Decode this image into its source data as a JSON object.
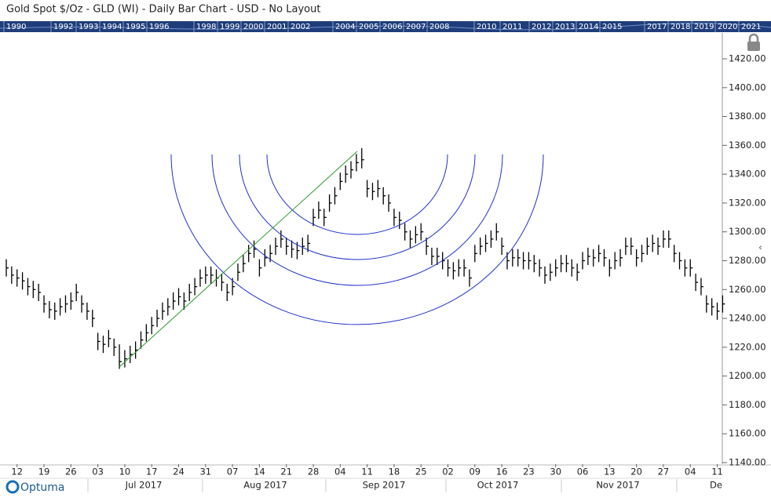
{
  "header": {
    "title": "Gold Spot $/Oz - GLD (WI) - Daily Bar Chart - USD - No Layout"
  },
  "timeline": [
    "1990",
    "1992",
    "1993",
    "1994",
    "1995",
    "1996",
    "1998",
    "1999",
    "2000",
    "2001",
    "2002",
    "2004",
    "2005",
    "2006",
    "2007",
    "2008",
    "2010",
    "2011",
    "2012",
    "2013",
    "2014",
    "2015",
    "2017",
    "2018",
    "2019",
    "2020",
    "2021"
  ],
  "brand": "Optuma",
  "chart_data": {
    "type": "ohlc",
    "high": [
      1281,
      1276,
      1274,
      1272,
      1268,
      1266,
      1264,
      1256,
      1252,
      1251,
      1254,
      1256,
      1258,
      1264,
      1256,
      1251,
      1246,
      1230,
      1228,
      1232,
      1226,
      1222,
      1218,
      1221,
      1224,
      1231,
      1236,
      1241,
      1246,
      1251,
      1254,
      1258,
      1261,
      1258,
      1264,
      1268,
      1274,
      1276,
      1276,
      1274,
      1271,
      1264,
      1268,
      1278,
      1284,
      1291,
      1294,
      1281,
      1288,
      1291,
      1296,
      1301,
      1296,
      1294,
      1293,
      1296,
      1298,
      1316,
      1321,
      1316,
      1326,
      1331,
      1341,
      1346,
      1349,
      1354,
      1358,
      1336,
      1334,
      1336,
      1331,
      1326,
      1316,
      1314,
      1306,
      1301,
      1304,
      1306,
      1296,
      1289,
      1289,
      1286,
      1281,
      1279,
      1281,
      1281,
      1274,
      1291,
      1296,
      1298,
      1301,
      1306,
      1296,
      1286,
      1288,
      1288,
      1286,
      1286,
      1284,
      1281,
      1276,
      1278,
      1281,
      1284,
      1284,
      1281,
      1278,
      1286,
      1289,
      1288,
      1291,
      1288,
      1281,
      1286,
      1288,
      1296,
      1296,
      1288,
      1291,
      1296,
      1298,
      1296,
      1301,
      1301,
      1291,
      1286,
      1281,
      1281,
      1271,
      1268,
      1256,
      1254,
      1251,
      1256
    ],
    "low": [
      1269,
      1264,
      1262,
      1260,
      1256,
      1254,
      1252,
      1244,
      1240,
      1239,
      1242,
      1244,
      1246,
      1252,
      1244,
      1239,
      1234,
      1218,
      1216,
      1220,
      1214,
      1205,
      1206,
      1209,
      1212,
      1219,
      1224,
      1229,
      1234,
      1239,
      1242,
      1246,
      1249,
      1246,
      1252,
      1256,
      1262,
      1264,
      1264,
      1262,
      1259,
      1252,
      1256,
      1266,
      1272,
      1279,
      1282,
      1269,
      1276,
      1279,
      1284,
      1289,
      1284,
      1282,
      1281,
      1284,
      1286,
      1304,
      1309,
      1304,
      1314,
      1319,
      1329,
      1334,
      1337,
      1342,
      1344,
      1324,
      1322,
      1324,
      1319,
      1314,
      1304,
      1302,
      1294,
      1289,
      1292,
      1294,
      1284,
      1277,
      1277,
      1274,
      1269,
      1267,
      1269,
      1269,
      1262,
      1279,
      1284,
      1286,
      1289,
      1294,
      1284,
      1274,
      1276,
      1276,
      1274,
      1274,
      1272,
      1269,
      1264,
      1266,
      1269,
      1272,
      1272,
      1269,
      1266,
      1274,
      1277,
      1276,
      1279,
      1276,
      1269,
      1274,
      1276,
      1284,
      1284,
      1276,
      1279,
      1284,
      1286,
      1284,
      1289,
      1289,
      1279,
      1274,
      1269,
      1269,
      1259,
      1256,
      1244,
      1242,
      1239,
      1244
    ],
    "close": [
      1275,
      1270,
      1268,
      1266,
      1262,
      1260,
      1258,
      1250,
      1246,
      1245,
      1248,
      1250,
      1252,
      1258,
      1250,
      1245,
      1240,
      1224,
      1222,
      1226,
      1220,
      1210,
      1212,
      1215,
      1218,
      1225,
      1230,
      1235,
      1240,
      1245,
      1248,
      1252,
      1255,
      1252,
      1258,
      1262,
      1268,
      1270,
      1270,
      1268,
      1265,
      1258,
      1262,
      1272,
      1278,
      1285,
      1288,
      1275,
      1282,
      1285,
      1290,
      1295,
      1290,
      1288,
      1287,
      1290,
      1292,
      1310,
      1315,
      1310,
      1320,
      1325,
      1335,
      1340,
      1343,
      1348,
      1350,
      1330,
      1328,
      1330,
      1325,
      1320,
      1310,
      1308,
      1300,
      1295,
      1298,
      1300,
      1290,
      1283,
      1283,
      1280,
      1275,
      1273,
      1275,
      1275,
      1268,
      1285,
      1290,
      1292,
      1295,
      1300,
      1290,
      1280,
      1282,
      1282,
      1280,
      1280,
      1278,
      1275,
      1270,
      1272,
      1275,
      1278,
      1278,
      1275,
      1272,
      1280,
      1283,
      1282,
      1285,
      1282,
      1275,
      1280,
      1282,
      1290,
      1290,
      1282,
      1285,
      1290,
      1292,
      1290,
      1295,
      1295,
      1285,
      1280,
      1275,
      1275,
      1265,
      1262,
      1250,
      1248,
      1245,
      1250
    ],
    "color": "#000000",
    "ylim": [
      1140,
      1420
    ],
    "yticks": [
      {
        "value": 1420,
        "label": "1420.00"
      },
      {
        "value": 1400,
        "label": "1400.00"
      },
      {
        "value": 1380,
        "label": "1380.00"
      },
      {
        "value": 1360,
        "label": "1360.00"
      },
      {
        "value": 1340,
        "label": "1340.00"
      },
      {
        "value": 1320,
        "label": "1320.00"
      },
      {
        "value": 1300,
        "label": "1300.00"
      },
      {
        "value": 1280,
        "label": "1280.00"
      },
      {
        "value": 1260,
        "label": "1260.00"
      },
      {
        "value": 1240,
        "label": "1240.00"
      },
      {
        "value": 1220,
        "label": "1220.00"
      },
      {
        "value": 1200,
        "label": "1200.00"
      },
      {
        "value": 1180,
        "label": "1180.00"
      },
      {
        "value": 1160,
        "label": "1160.00"
      },
      {
        "value": 1140,
        "label": "1140.00"
      }
    ],
    "xticks": [
      {
        "value": 2,
        "label": "12"
      },
      {
        "value": 7,
        "label": "19"
      },
      {
        "value": 12,
        "label": "26"
      },
      {
        "value": 17,
        "label": "03"
      },
      {
        "value": 22,
        "label": "10"
      },
      {
        "value": 27,
        "label": "17"
      },
      {
        "value": 32,
        "label": "24"
      },
      {
        "value": 37,
        "label": "31"
      },
      {
        "value": 42,
        "label": "07"
      },
      {
        "value": 47,
        "label": "14"
      },
      {
        "value": 52,
        "label": "21"
      },
      {
        "value": 57,
        "label": "28"
      },
      {
        "value": 62,
        "label": "04"
      },
      {
        "value": 67,
        "label": "11"
      },
      {
        "value": 72,
        "label": "18"
      },
      {
        "value": 77,
        "label": "25"
      },
      {
        "value": 82,
        "label": "02"
      },
      {
        "value": 87,
        "label": "09"
      },
      {
        "value": 92,
        "label": "16"
      },
      {
        "value": 97,
        "label": "23"
      },
      {
        "value": 102,
        "label": "30"
      },
      {
        "value": 107,
        "label": "06"
      },
      {
        "value": 112,
        "label": "13"
      },
      {
        "value": 117,
        "label": "20"
      },
      {
        "value": 122,
        "label": "27"
      },
      {
        "value": 127,
        "label": "04"
      },
      {
        "value": 132,
        "label": "11"
      }
    ],
    "months": [
      "Jul 2017",
      "Aug 2017",
      "Sep 2017",
      "Oct 2017",
      "Nov 2017",
      "De"
    ]
  }
}
